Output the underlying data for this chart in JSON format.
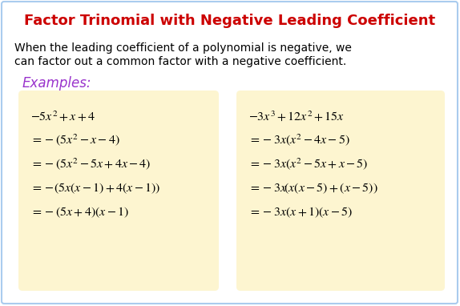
{
  "title": "Factor Trinomial with Negative Leading Coefficient",
  "title_color": "#cc0000",
  "description_line1": "When the leading coefficient of a polynomial is negative, we",
  "description_line2": "can factor out a common factor with a negative coefficient.",
  "examples_label": "Examples:",
  "examples_color": "#9933cc",
  "box_color": "#fdf5d0",
  "background_color": "#ffffff",
  "border_color": "#aaccee",
  "left_box_lines": [
    "$-5x^2+x+4$",
    "$=-(5x^2-x-4)$",
    "$=-(5x^2-5x+4x-4)$",
    "$=-\\!(5x(x-1)+4(x-1))$",
    "$=-(5x+4)(x-1)$"
  ],
  "right_box_lines": [
    "$-3x^3+12x^2+15x$",
    "$=-3x(x^2-4x-5)$",
    "$=-3x(x^2-5x+x-5)$",
    "$=-3x\\!(x(x-5)+(x-5))$",
    "$=-3x(x+1)(x-5)$"
  ],
  "text_color": "#000000",
  "figsize": [
    5.74,
    3.82
  ],
  "dpi": 100
}
